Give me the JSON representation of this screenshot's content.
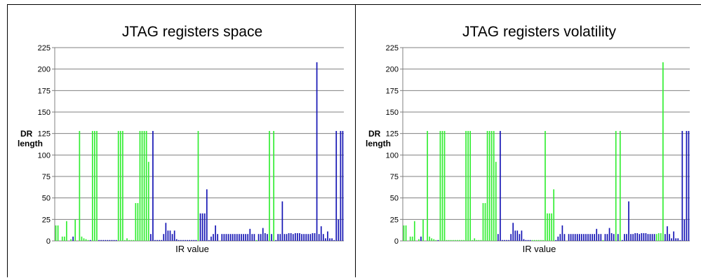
{
  "colors": {
    "green": "#33ee33",
    "blue": "#1414b4",
    "grid": "#808080",
    "axis": "#808080"
  },
  "chart_data": [
    {
      "type": "bar",
      "title": "JTAG registers space",
      "xlabel": "IR value",
      "ylabel": "DR\nlength",
      "ylim": [
        0,
        225
      ],
      "yticks": [
        0,
        25,
        50,
        75,
        100,
        125,
        150,
        175,
        200,
        225
      ],
      "grid": true,
      "legend": "none",
      "values": [
        18,
        18,
        0,
        5,
        5,
        23,
        0,
        2,
        5,
        25,
        0,
        128,
        5,
        3,
        2,
        1,
        1,
        128,
        128,
        128,
        1,
        1,
        1,
        1,
        1,
        1,
        1,
        1,
        1,
        128,
        128,
        128,
        1,
        3,
        1,
        1,
        1,
        44,
        44,
        128,
        128,
        128,
        128,
        92,
        8,
        128,
        1,
        1,
        1,
        1,
        8,
        21,
        12,
        12,
        8,
        12,
        2,
        1,
        1,
        1,
        1,
        1,
        1,
        1,
        1,
        1,
        128,
        32,
        32,
        32,
        60,
        1,
        5,
        8,
        18,
        8,
        0,
        8,
        8,
        8,
        8,
        8,
        8,
        8,
        8,
        8,
        8,
        8,
        8,
        8,
        14,
        8,
        8,
        1,
        8,
        8,
        15,
        9,
        8,
        128,
        8,
        128,
        1,
        8,
        8,
        46,
        8,
        8,
        9,
        9,
        8,
        9,
        9,
        9,
        8,
        8,
        8,
        8,
        8,
        9,
        9,
        208,
        8,
        17,
        8,
        3,
        11,
        3,
        3,
        1,
        128,
        25,
        128,
        128
      ],
      "colors": [
        "g",
        "g",
        "g",
        "g",
        "g",
        "g",
        "g",
        "g",
        "b",
        "g",
        "g",
        "g",
        "g",
        "g",
        "g",
        "g",
        "b",
        "g",
        "g",
        "g",
        "b",
        "b",
        "b",
        "b",
        "b",
        "b",
        "b",
        "b",
        "b",
        "g",
        "g",
        "g",
        "g",
        "g",
        "g",
        "g",
        "g",
        "g",
        "g",
        "g",
        "g",
        "g",
        "g",
        "g",
        "b",
        "b",
        "b",
        "b",
        "b",
        "b",
        "b",
        "b",
        "b",
        "b",
        "b",
        "b",
        "b",
        "b",
        "b",
        "b",
        "b",
        "b",
        "b",
        "b",
        "b",
        "b",
        "g",
        "b",
        "b",
        "b",
        "b",
        "b",
        "b",
        "b",
        "b",
        "b",
        "b",
        "b",
        "b",
        "b",
        "b",
        "b",
        "b",
        "b",
        "b",
        "b",
        "b",
        "b",
        "b",
        "b",
        "b",
        "b",
        "b",
        "g",
        "b",
        "b",
        "b",
        "b",
        "b",
        "g",
        "b",
        "g",
        "b",
        "b",
        "b",
        "b",
        "b",
        "b",
        "b",
        "b",
        "b",
        "b",
        "b",
        "b",
        "b",
        "b",
        "b",
        "b",
        "b",
        "b",
        "b",
        "b",
        "b",
        "b",
        "b",
        "b",
        "b",
        "b",
        "b",
        "b",
        "b",
        "b",
        "b",
        "b"
      ]
    },
    {
      "type": "bar",
      "title": "JTAG registers volatility",
      "xlabel": "IR value",
      "ylabel": "DR\nlength",
      "ylim": [
        0,
        225
      ],
      "yticks": [
        0,
        25,
        50,
        75,
        100,
        125,
        150,
        175,
        200,
        225
      ],
      "grid": true,
      "legend": "none",
      "values": [
        18,
        18,
        0,
        5,
        5,
        23,
        0,
        2,
        5,
        25,
        0,
        128,
        5,
        3,
        2,
        1,
        1,
        128,
        128,
        128,
        1,
        1,
        1,
        1,
        1,
        1,
        1,
        1,
        1,
        128,
        128,
        128,
        1,
        3,
        1,
        1,
        1,
        44,
        44,
        128,
        128,
        128,
        128,
        92,
        8,
        128,
        1,
        1,
        1,
        1,
        8,
        21,
        12,
        12,
        8,
        12,
        2,
        1,
        1,
        1,
        1,
        1,
        1,
        1,
        1,
        1,
        128,
        32,
        32,
        32,
        60,
        1,
        5,
        8,
        18,
        8,
        0,
        8,
        8,
        8,
        8,
        8,
        8,
        8,
        8,
        8,
        8,
        8,
        8,
        8,
        14,
        8,
        8,
        1,
        8,
        8,
        15,
        9,
        8,
        128,
        8,
        128,
        1,
        8,
        8,
        46,
        8,
        8,
        9,
        9,
        8,
        9,
        9,
        9,
        8,
        8,
        8,
        8,
        8,
        9,
        9,
        208,
        8,
        17,
        8,
        3,
        11,
        3,
        3,
        1,
        128,
        25,
        128,
        128
      ],
      "colors": [
        "g",
        "g",
        "g",
        "g",
        "g",
        "g",
        "g",
        "g",
        "b",
        "g",
        "g",
        "g",
        "g",
        "g",
        "g",
        "g",
        "b",
        "g",
        "g",
        "g",
        "g",
        "g",
        "g",
        "g",
        "g",
        "g",
        "g",
        "g",
        "g",
        "g",
        "g",
        "g",
        "g",
        "g",
        "g",
        "g",
        "g",
        "g",
        "g",
        "g",
        "g",
        "g",
        "g",
        "g",
        "b",
        "b",
        "b",
        "b",
        "b",
        "b",
        "b",
        "b",
        "b",
        "b",
        "b",
        "b",
        "b",
        "b",
        "b",
        "b",
        "g",
        "g",
        "g",
        "g",
        "g",
        "g",
        "g",
        "g",
        "g",
        "g",
        "g",
        "b",
        "b",
        "b",
        "b",
        "b",
        "b",
        "b",
        "b",
        "b",
        "b",
        "b",
        "b",
        "b",
        "b",
        "b",
        "b",
        "b",
        "b",
        "b",
        "b",
        "b",
        "b",
        "g",
        "b",
        "b",
        "b",
        "b",
        "b",
        "g",
        "b",
        "g",
        "b",
        "b",
        "b",
        "b",
        "b",
        "b",
        "b",
        "b",
        "b",
        "b",
        "b",
        "b",
        "b",
        "b",
        "b",
        "b",
        "g",
        "g",
        "g",
        "g",
        "b",
        "b",
        "b",
        "b",
        "b",
        "b",
        "b",
        "b",
        "b",
        "b",
        "b",
        "b"
      ]
    }
  ]
}
